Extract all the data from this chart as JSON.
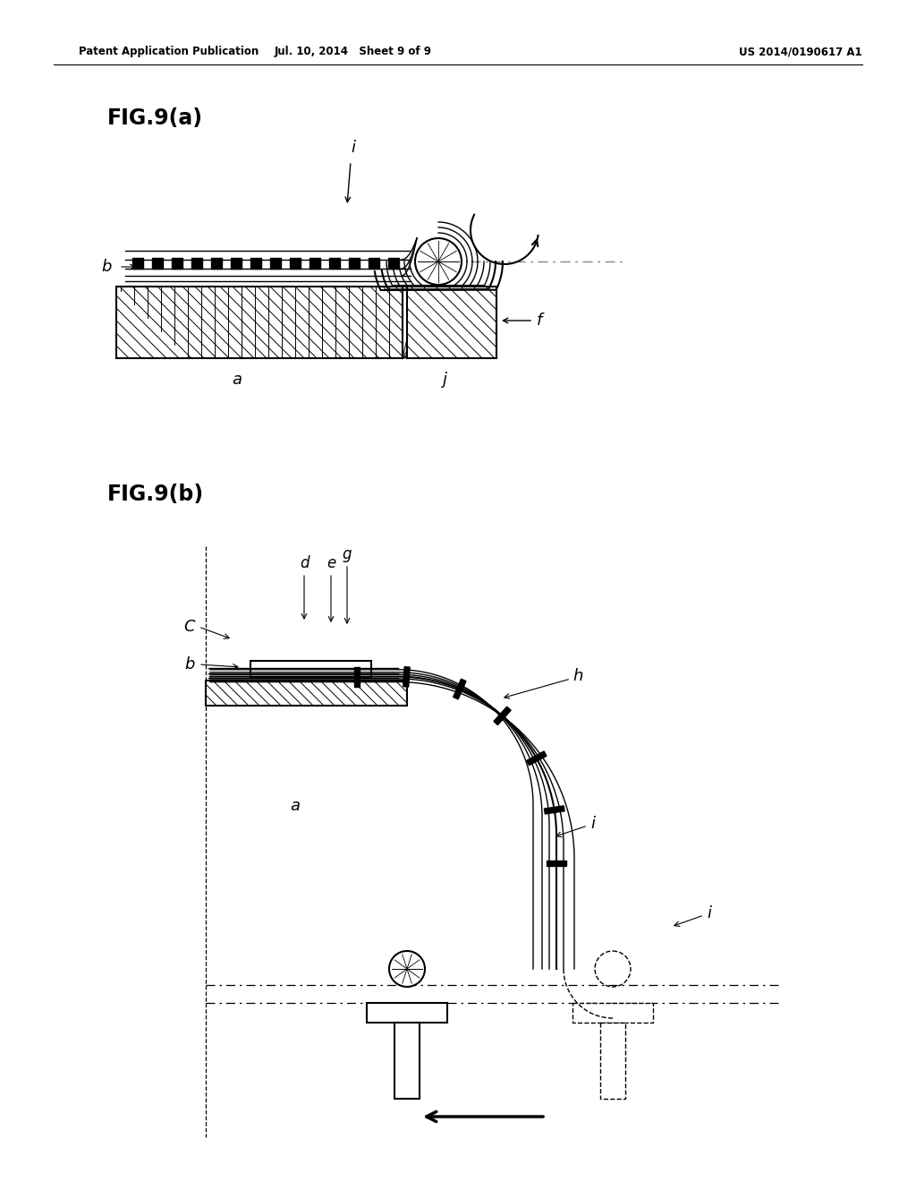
{
  "header_left": "Patent Application Publication",
  "header_mid": "Jul. 10, 2014   Sheet 9 of 9",
  "header_right": "US 2014/0190617 A1",
  "fig_a_label": "FIG.9(a)",
  "fig_b_label": "FIG.9(b)",
  "bg_color": "#ffffff",
  "line_color": "#000000"
}
